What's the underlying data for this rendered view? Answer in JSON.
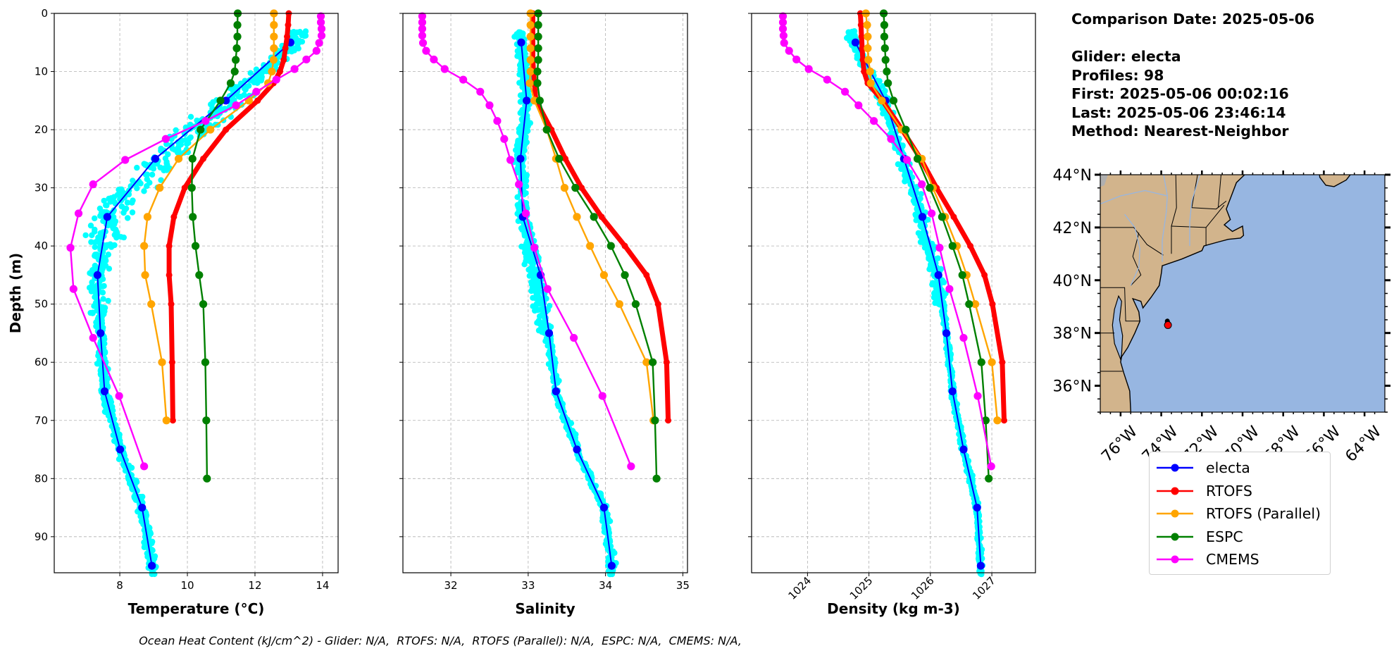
{
  "info": {
    "comparison_date": "Comparison Date: 2025-05-06",
    "glider": "Glider: electa",
    "profiles": "Profiles: 98",
    "first": "First: 2025-05-06 00:02:16",
    "last": "Last: 2025-05-06 23:46:14",
    "method": "Method: Nearest-Neighbor"
  },
  "caption": "Ocean Heat Content (kJ/cm^2) - Glider: N/A,  RTOFS: N/A,  RTOFS (Parallel): N/A,  ESPC: N/A,  CMEMS: N/A,",
  "legend": {
    "placement": "below-map",
    "items": [
      {
        "name": "electa",
        "color": "#0000ff"
      },
      {
        "name": "RTOFS",
        "color": "#ff0000"
      },
      {
        "name": "RTOFS (Parallel)",
        "color": "#ffa500"
      },
      {
        "name": "ESPC",
        "color": "#008000"
      },
      {
        "name": "CMEMS",
        "color": "#ff00ff"
      }
    ]
  },
  "colors": {
    "glider_raw": "#00ffff",
    "land": "#d2b48c",
    "ocean": "#97b6e1",
    "grid": "#b0b0b0"
  },
  "chart_data": [
    {
      "type": "line",
      "xlabel": "Temperature (°C)",
      "ylabel": "Depth (m)",
      "xlim": [
        6.06,
        14.46
      ],
      "ylim": [
        96.2,
        0
      ],
      "xticks": [
        8,
        10,
        12,
        14
      ],
      "yticks": [
        0,
        10,
        20,
        30,
        40,
        50,
        60,
        70,
        80,
        90
      ],
      "grid": true,
      "series": [
        {
          "name": "electa",
          "depth": [
            5,
            15,
            25,
            35,
            45,
            55,
            65,
            75,
            85,
            95
          ],
          "values": [
            13.05,
            11.14,
            9.05,
            7.63,
            7.34,
            7.43,
            7.55,
            8.01,
            8.66,
            8.95
          ]
        },
        {
          "name": "RTOFS",
          "depth": [
            0,
            2,
            4,
            6,
            8,
            10,
            12,
            15,
            20,
            25,
            30,
            35,
            40,
            45,
            50,
            60,
            70
          ],
          "values": [
            13.0,
            12.98,
            12.95,
            12.9,
            12.85,
            12.74,
            12.55,
            12.08,
            11.14,
            10.47,
            9.92,
            9.6,
            9.46,
            9.46,
            9.52,
            9.55,
            9.57
          ]
        },
        {
          "name": "RTOFS (Parallel)",
          "depth": [
            0,
            2,
            4,
            6,
            8,
            10,
            12,
            15,
            20,
            25,
            30,
            35,
            40,
            45,
            50,
            60,
            70
          ],
          "values": [
            12.56,
            12.56,
            12.56,
            12.56,
            12.55,
            12.5,
            12.39,
            11.82,
            10.68,
            9.74,
            9.18,
            8.82,
            8.72,
            8.75,
            8.93,
            9.25,
            9.38
          ]
        },
        {
          "name": "ESPC",
          "depth": [
            0,
            2,
            4,
            6,
            8,
            10,
            12,
            15,
            20,
            25,
            30,
            35,
            40,
            45,
            50,
            60,
            70,
            80
          ],
          "values": [
            11.49,
            11.48,
            11.48,
            11.46,
            11.43,
            11.4,
            11.28,
            10.98,
            10.39,
            10.15,
            10.13,
            10.16,
            10.24,
            10.35,
            10.47,
            10.53,
            10.56,
            10.58
          ]
        },
        {
          "name": "CMEMS",
          "depth": [
            0.49,
            1.54,
            2.65,
            3.82,
            5.08,
            6.44,
            7.93,
            9.57,
            11.4,
            13.47,
            15.81,
            18.5,
            21.6,
            25.2,
            29.4,
            34.4,
            40.3,
            47.4,
            55.8,
            65.8,
            77.9
          ],
          "values": [
            13.95,
            13.95,
            13.97,
            13.97,
            13.9,
            13.82,
            13.52,
            13.17,
            12.63,
            12.04,
            11.44,
            10.54,
            9.36,
            8.16,
            7.21,
            6.78,
            6.54,
            6.63,
            7.21,
            7.98,
            8.72
          ]
        }
      ]
    },
    {
      "type": "line",
      "xlabel": "Salinity",
      "xlim": [
        31.38,
        35.06
      ],
      "ylim": [
        96.2,
        0
      ],
      "xticks": [
        32,
        33,
        34,
        35
      ],
      "grid": true,
      "series": [
        {
          "name": "electa",
          "depth": [
            5,
            15,
            25,
            35,
            45,
            55,
            65,
            75,
            85,
            95
          ],
          "values": [
            32.91,
            32.98,
            32.9,
            32.93,
            33.16,
            33.27,
            33.36,
            33.63,
            33.98,
            34.08
          ]
        },
        {
          "name": "RTOFS",
          "depth": [
            0,
            2,
            4,
            6,
            8,
            10,
            12,
            15,
            20,
            25,
            30,
            35,
            40,
            45,
            50,
            60,
            70
          ],
          "values": [
            33.06,
            33.06,
            33.06,
            33.06,
            33.06,
            33.07,
            33.08,
            33.1,
            33.3,
            33.48,
            33.69,
            33.95,
            34.25,
            34.53,
            34.68,
            34.79,
            34.81
          ]
        },
        {
          "name": "RTOFS (Parallel)",
          "depth": [
            0,
            2,
            4,
            6,
            8,
            10,
            12,
            15,
            20,
            25,
            30,
            35,
            40,
            45,
            50,
            60,
            70
          ],
          "values": [
            33.03,
            33.03,
            33.03,
            33.03,
            33.03,
            33.03,
            33.02,
            33.08,
            33.24,
            33.36,
            33.47,
            33.63,
            33.8,
            33.98,
            34.18,
            34.53,
            34.62
          ]
        },
        {
          "name": "ESPC",
          "depth": [
            0,
            2,
            4,
            6,
            8,
            10,
            12,
            15,
            20,
            25,
            30,
            35,
            40,
            45,
            50,
            60,
            70,
            80
          ],
          "values": [
            33.13,
            33.13,
            33.13,
            33.13,
            33.13,
            33.12,
            33.12,
            33.15,
            33.24,
            33.4,
            33.61,
            33.85,
            34.07,
            34.25,
            34.39,
            34.61,
            34.64,
            34.66
          ]
        },
        {
          "name": "CMEMS",
          "depth": [
            0.49,
            1.54,
            2.65,
            3.82,
            5.08,
            6.44,
            7.93,
            9.57,
            11.4,
            13.47,
            15.81,
            18.5,
            21.6,
            25.2,
            29.4,
            34.4,
            40.3,
            47.4,
            55.8,
            65.8,
            77.9
          ],
          "values": [
            31.63,
            31.63,
            31.63,
            31.63,
            31.64,
            31.68,
            31.78,
            31.92,
            32.16,
            32.38,
            32.5,
            32.6,
            32.69,
            32.77,
            32.88,
            32.97,
            33.08,
            33.25,
            33.59,
            33.96,
            34.33
          ]
        }
      ]
    },
    {
      "type": "line",
      "xlabel": "Density (kg m-3)",
      "xlim": [
        1023.09,
        1027.71
      ],
      "ylim": [
        96.2,
        0
      ],
      "xticks": [
        1024,
        1025,
        1026,
        1027
      ],
      "grid": true,
      "series": [
        {
          "name": "electa",
          "depth": [
            5,
            15,
            25,
            35,
            45,
            55,
            65,
            75,
            85,
            95
          ],
          "values": [
            1024.78,
            1025.27,
            1025.57,
            1025.87,
            1026.13,
            1026.26,
            1026.36,
            1026.54,
            1026.76,
            1026.82
          ]
        },
        {
          "name": "RTOFS",
          "depth": [
            0,
            2,
            4,
            6,
            8,
            10,
            12,
            15,
            20,
            25,
            30,
            35,
            40,
            45,
            50,
            60,
            70
          ],
          "values": [
            1024.86,
            1024.87,
            1024.88,
            1024.89,
            1024.9,
            1024.92,
            1024.98,
            1025.22,
            1025.54,
            1025.84,
            1026.1,
            1026.38,
            1026.65,
            1026.88,
            1027.01,
            1027.17,
            1027.2
          ]
        },
        {
          "name": "RTOFS (Parallel)",
          "depth": [
            0,
            2,
            4,
            6,
            8,
            10,
            12,
            15,
            20,
            25,
            30,
            35,
            40,
            45,
            50,
            60,
            70
          ],
          "values": [
            1024.95,
            1024.97,
            1024.98,
            1024.98,
            1024.99,
            1025.02,
            1025.03,
            1025.21,
            1025.53,
            1025.86,
            1026.04,
            1026.24,
            1026.43,
            1026.59,
            1026.73,
            1027.0,
            1027.09
          ]
        },
        {
          "name": "ESPC",
          "depth": [
            0,
            2,
            4,
            6,
            8,
            10,
            12,
            15,
            20,
            25,
            30,
            35,
            40,
            45,
            50,
            60,
            70,
            80
          ],
          "values": [
            1025.24,
            1025.25,
            1025.25,
            1025.26,
            1025.27,
            1025.29,
            1025.31,
            1025.4,
            1025.6,
            1025.79,
            1025.99,
            1026.19,
            1026.36,
            1026.52,
            1026.63,
            1026.83,
            1026.9,
            1026.95
          ]
        },
        {
          "name": "CMEMS",
          "depth": [
            0.49,
            1.54,
            2.65,
            3.82,
            5.08,
            6.44,
            7.93,
            9.57,
            11.4,
            13.47,
            15.81,
            18.5,
            21.6,
            25.2,
            29.4,
            34.4,
            40.3,
            47.4,
            55.8,
            65.8,
            77.9
          ],
          "values": [
            1023.6,
            1023.6,
            1023.6,
            1023.61,
            1023.62,
            1023.7,
            1023.82,
            1024.02,
            1024.32,
            1024.61,
            1024.83,
            1025.08,
            1025.36,
            1025.62,
            1025.86,
            1026.02,
            1026.15,
            1026.31,
            1026.54,
            1026.77,
            1026.99
          ]
        }
      ]
    },
    {
      "type": "map",
      "lon_range": [
        -77,
        -63
      ],
      "lat_range": [
        35,
        44
      ],
      "lon_ticks": [
        -76,
        -74,
        -72,
        -70,
        -68,
        -66,
        -64
      ],
      "lon_tick_labels": [
        "76°W",
        "74°W",
        "72°W",
        "70°W",
        "68°W",
        "66°W",
        "64°W"
      ],
      "lat_ticks": [
        36,
        38,
        40,
        42,
        44
      ],
      "lat_tick_labels": [
        "36°N",
        "38°N",
        "40°N",
        "42°N",
        "44°N"
      ],
      "glider_track": {
        "lon": [
          -73.7,
          -73.68
        ],
        "lat": [
          38.45,
          38.35
        ]
      },
      "glider_position": {
        "lon": -73.67,
        "lat": 38.3
      }
    }
  ]
}
